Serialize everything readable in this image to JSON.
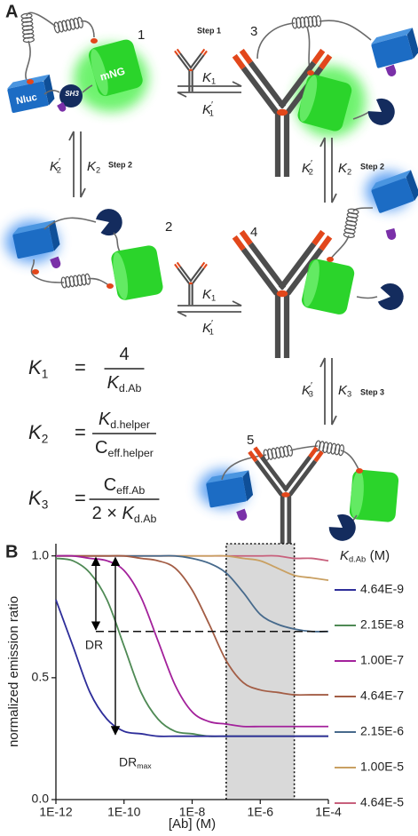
{
  "figure": {
    "panel_label": "A",
    "states": [
      "1",
      "2",
      "3",
      "4",
      "5"
    ],
    "steps": [
      "Step 1",
      "Step 2",
      "Step 2",
      "Step 3"
    ],
    "domain_labels": {
      "nluc": "Nluc",
      "sh3": "SH3",
      "mng": "mNG"
    },
    "rates": [
      {
        "symbol": "K",
        "sub": "1",
        "italic": true
      },
      {
        "symbol": "K",
        "sup": "′",
        "sub": "1",
        "italic": true
      },
      {
        "symbol": "K",
        "sub": "1",
        "italic": true
      },
      {
        "symbol": "K",
        "sup": "′",
        "sub": "1",
        "italic": true
      },
      {
        "symbol": "K",
        "sup": "′",
        "sub": "2",
        "italic": true
      },
      {
        "symbol": "K",
        "sub": "2",
        "italic": true
      },
      {
        "symbol": "K",
        "sup": "′",
        "sub": "2",
        "italic": true
      },
      {
        "symbol": "K",
        "sub": "2",
        "italic": true
      },
      {
        "symbol": "K",
        "sup": "′",
        "sub": "3",
        "italic": true
      },
      {
        "symbol": "K",
        "sub": "3",
        "italic": true
      }
    ],
    "equations": [
      {
        "lhs": {
          "symbol": "K",
          "sub": "1",
          "italic": true
        },
        "op": "=",
        "num": {
          "symbol": "4",
          "italic": false
        },
        "den": {
          "symbol": "K",
          "sub": "d.Ab",
          "italic": true
        }
      },
      {
        "lhs": {
          "symbol": "K",
          "sub": "2",
          "italic": true
        },
        "op": "=",
        "num": {
          "symbol": "K",
          "sub": "d.helper",
          "italic": true
        },
        "den": {
          "symbol": "C",
          "sub": "eff.helper",
          "italic": false
        }
      },
      {
        "lhs": {
          "symbol": "K",
          "sub": "3",
          "italic": true
        },
        "op": "=",
        "num": {
          "symbol": "C",
          "sub": "eff.Ab",
          "italic": false
        },
        "den": {
          "prefix": "2 × ",
          "symbol": "K",
          "sub": "d.Ab",
          "italic": true
        }
      }
    ]
  },
  "chart_data": {
    "type": "line",
    "panel_label": "B",
    "x_label": "[Ab] (M)",
    "y_label": "normalized emission ratio",
    "xscale": "log",
    "x": [
      1e-12,
      3.16e-12,
      1e-11,
      3.16e-11,
      1e-10,
      3.16e-10,
      1e-09,
      3.16e-09,
      1e-08,
      3.16e-08,
      1e-07,
      3.16e-07,
      1e-06,
      3.16e-06,
      1e-05,
      3.16e-05,
      0.0001
    ],
    "xlim": [
      1e-12,
      0.0001
    ],
    "xticks": [
      {
        "value": 1e-12,
        "label": "1E-12"
      },
      {
        "value": 1e-10,
        "label": "1E-10"
      },
      {
        "value": 1e-08,
        "label": "1E-8"
      },
      {
        "value": 1e-06,
        "label": "1E-6"
      },
      {
        "value": 0.0001,
        "label": "1E-4"
      }
    ],
    "ylim": [
      0,
      1.05
    ],
    "yticks": [
      {
        "value": 0,
        "label": "0.0"
      },
      0.5,
      {
        "value": 1,
        "label": "1.0"
      }
    ],
    "grid": false,
    "legend_title": {
      "symbol": "K",
      "sub": "d.Ab",
      "unit": "(M)",
      "italic": true
    },
    "highlight_xrange": [
      1e-07,
      1e-05
    ],
    "annotations": {
      "dr": "DR",
      "dr_max": {
        "symbol": "DR",
        "sub": "max",
        "italic": false
      }
    },
    "series": [
      {
        "name": "4.64E-9",
        "color": "#2e2e9a",
        "values": [
          0.82,
          0.63,
          0.44,
          0.33,
          0.28,
          0.27,
          0.26,
          0.26,
          0.26,
          0.26,
          0.26,
          0.26,
          0.26,
          0.26,
          0.26,
          0.26,
          0.26
        ]
      },
      {
        "name": "2.15E-8",
        "color": "#4f8a55",
        "values": [
          0.99,
          0.98,
          0.93,
          0.82,
          0.63,
          0.44,
          0.33,
          0.28,
          0.27,
          0.26,
          0.26,
          0.26,
          0.26,
          0.26,
          0.26,
          0.26,
          0.26
        ]
      },
      {
        "name": "1.00E-7",
        "color": "#a3219b",
        "values": [
          1.0,
          1.0,
          0.99,
          0.98,
          0.94,
          0.83,
          0.65,
          0.47,
          0.36,
          0.32,
          0.31,
          0.3,
          0.3,
          0.3,
          0.3,
          0.3,
          0.3
        ]
      },
      {
        "name": "4.64E-7",
        "color": "#a35d45",
        "values": [
          1.0,
          1.0,
          1.0,
          1.0,
          1.0,
          0.99,
          0.98,
          0.95,
          0.86,
          0.72,
          0.57,
          0.48,
          0.45,
          0.44,
          0.43,
          0.43,
          0.43
        ]
      },
      {
        "name": "2.15E-6",
        "color": "#476a8c",
        "values": [
          1.0,
          1.0,
          1.0,
          1.0,
          1.0,
          1.0,
          1.0,
          1.0,
          0.99,
          0.97,
          0.93,
          0.85,
          0.76,
          0.72,
          0.7,
          0.69,
          0.69
        ]
      },
      {
        "name": "1.00E-5",
        "color": "#c9a062",
        "values": [
          1.0,
          1.0,
          1.0,
          1.0,
          1.0,
          1.0,
          1.0,
          1.0,
          1.0,
          1.0,
          1.0,
          0.99,
          0.98,
          0.95,
          0.92,
          0.91,
          0.9
        ]
      },
      {
        "name": "4.64E-5",
        "color": "#c8607c",
        "values": [
          1.0,
          1.0,
          1.0,
          1.0,
          1.0,
          1.0,
          1.0,
          1.0,
          1.0,
          1.0,
          1.0,
          1.0,
          1.0,
          1.0,
          0.99,
          0.99,
          0.98
        ]
      }
    ]
  }
}
